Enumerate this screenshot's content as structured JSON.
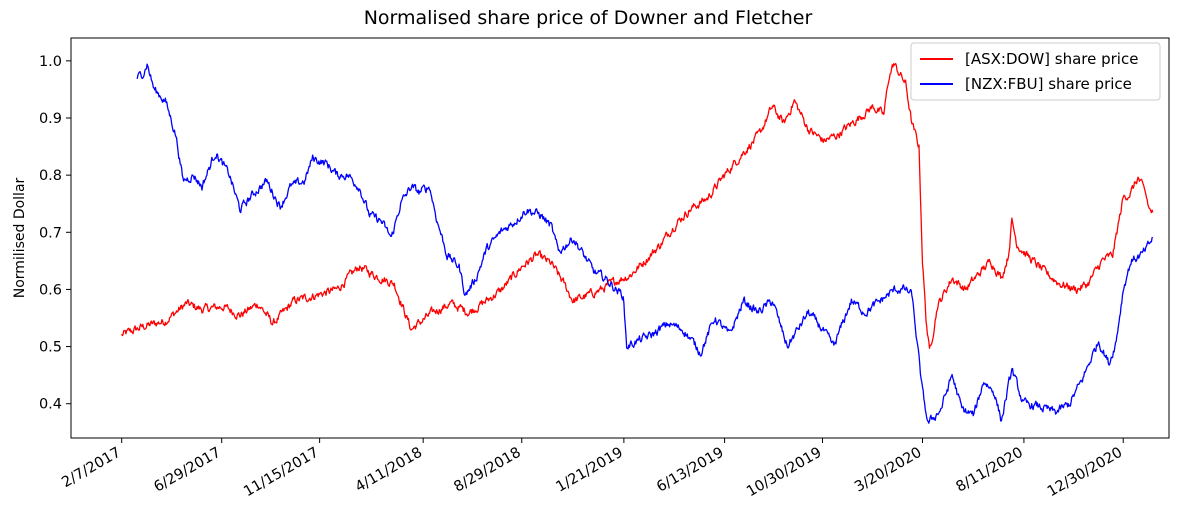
{
  "chart_data": {
    "type": "line",
    "title": "Normalised share price of Downer and Fletcher",
    "xlabel": "",
    "ylabel": "Normilised Dollar",
    "x_ticks": [
      "2/7/2017",
      "6/29/2017",
      "11/15/2017",
      "4/11/2018",
      "8/29/2018",
      "1/21/2019",
      "6/13/2019",
      "10/30/2019",
      "3/20/2020",
      "8/11/2020",
      "12/30/2020"
    ],
    "y_ticks": [
      "0.4",
      "0.5",
      "0.6",
      "0.7",
      "0.8",
      "0.9",
      "1.0"
    ],
    "ylim": [
      0.34,
      1.04
    ],
    "xlim": [
      "2016-11-27",
      "2021-03-05"
    ],
    "grid": false,
    "legend_position": "top-right",
    "series": [
      {
        "name": "[ASX:DOW] share price",
        "color": "#ff0000",
        "points": [
          [
            "2017-02-07",
            0.52
          ],
          [
            "2017-03-10",
            0.535
          ],
          [
            "2017-04-10",
            0.545
          ],
          [
            "2017-05-10",
            0.575
          ],
          [
            "2017-06-01",
            0.565
          ],
          [
            "2017-07-01",
            0.57
          ],
          [
            "2017-07-25",
            0.555
          ],
          [
            "2017-08-20",
            0.575
          ],
          [
            "2017-09-10",
            0.54
          ],
          [
            "2017-10-10",
            0.58
          ],
          [
            "2017-11-10",
            0.59
          ],
          [
            "2017-12-10",
            0.6
          ],
          [
            "2018-01-10",
            0.64
          ],
          [
            "2018-02-01",
            0.625
          ],
          [
            "2018-03-01",
            0.61
          ],
          [
            "2018-03-25",
            0.53
          ],
          [
            "2018-04-25",
            0.56
          ],
          [
            "2018-05-20",
            0.575
          ],
          [
            "2018-06-15",
            0.56
          ],
          [
            "2018-07-10",
            0.58
          ],
          [
            "2018-08-01",
            0.6
          ],
          [
            "2018-08-29",
            0.64
          ],
          [
            "2018-09-20",
            0.66
          ],
          [
            "2018-10-10",
            0.645
          ],
          [
            "2018-10-28",
            0.61
          ],
          [
            "2018-11-10",
            0.58
          ],
          [
            "2018-12-01",
            0.59
          ],
          [
            "2018-12-20",
            0.6
          ],
          [
            "2019-01-10",
            0.615
          ],
          [
            "2019-01-30",
            0.625
          ],
          [
            "2019-02-20",
            0.65
          ],
          [
            "2019-03-15",
            0.68
          ],
          [
            "2019-04-01",
            0.71
          ],
          [
            "2019-04-25",
            0.74
          ],
          [
            "2019-05-20",
            0.76
          ],
          [
            "2019-06-13",
            0.8
          ],
          [
            "2019-07-10",
            0.84
          ],
          [
            "2019-08-01",
            0.87
          ],
          [
            "2019-08-20",
            0.92
          ],
          [
            "2019-09-05",
            0.89
          ],
          [
            "2019-09-20",
            0.93
          ],
          [
            "2019-10-10",
            0.88
          ],
          [
            "2019-11-01",
            0.86
          ],
          [
            "2019-11-20",
            0.87
          ],
          [
            "2019-12-10",
            0.89
          ],
          [
            "2020-01-10",
            0.92
          ],
          [
            "2020-01-25",
            0.905
          ],
          [
            "2020-02-01",
            0.97
          ],
          [
            "2020-02-08",
            0.995
          ],
          [
            "2020-02-25",
            0.96
          ],
          [
            "2020-03-05",
            0.89
          ],
          [
            "2020-03-15",
            0.85
          ],
          [
            "2020-03-20",
            0.65
          ],
          [
            "2020-03-25",
            0.55
          ],
          [
            "2020-03-30",
            0.49
          ],
          [
            "2020-04-10",
            0.57
          ],
          [
            "2020-05-01",
            0.62
          ],
          [
            "2020-05-20",
            0.6
          ],
          [
            "2020-06-10",
            0.63
          ],
          [
            "2020-06-25",
            0.65
          ],
          [
            "2020-07-10",
            0.62
          ],
          [
            "2020-07-20",
            0.66
          ],
          [
            "2020-07-25",
            0.72
          ],
          [
            "2020-08-01",
            0.68
          ],
          [
            "2020-08-15",
            0.66
          ],
          [
            "2020-09-10",
            0.63
          ],
          [
            "2020-10-01",
            0.61
          ],
          [
            "2020-10-25",
            0.6
          ],
          [
            "2020-11-10",
            0.61
          ],
          [
            "2020-11-30",
            0.65
          ],
          [
            "2020-12-15",
            0.66
          ],
          [
            "2020-12-30",
            0.76
          ],
          [
            "2021-01-10",
            0.77
          ],
          [
            "2021-01-20",
            0.795
          ],
          [
            "2021-01-30",
            0.77
          ],
          [
            "2021-02-05",
            0.74
          ],
          [
            "2021-02-10",
            0.735
          ]
        ]
      },
      {
        "name": "[NZX:FBU] share price",
        "color": "#0000ff",
        "points": [
          [
            "2017-03-01",
            0.97
          ],
          [
            "2017-03-10",
            0.98
          ],
          [
            "2017-03-15",
            0.995
          ],
          [
            "2017-03-25",
            0.95
          ],
          [
            "2017-04-10",
            0.93
          ],
          [
            "2017-04-25",
            0.87
          ],
          [
            "2017-05-05",
            0.79
          ],
          [
            "2017-05-20",
            0.8
          ],
          [
            "2017-06-01",
            0.78
          ],
          [
            "2017-06-20",
            0.84
          ],
          [
            "2017-07-10",
            0.8
          ],
          [
            "2017-07-25",
            0.74
          ],
          [
            "2017-08-15",
            0.77
          ],
          [
            "2017-09-01",
            0.79
          ],
          [
            "2017-09-20",
            0.745
          ],
          [
            "2017-10-05",
            0.78
          ],
          [
            "2017-10-25",
            0.79
          ],
          [
            "2017-11-05",
            0.83
          ],
          [
            "2017-11-25",
            0.82
          ],
          [
            "2017-12-10",
            0.8
          ],
          [
            "2017-12-25",
            0.8
          ],
          [
            "2018-01-10",
            0.78
          ],
          [
            "2018-01-25",
            0.73
          ],
          [
            "2018-02-10",
            0.72
          ],
          [
            "2018-02-25",
            0.69
          ],
          [
            "2018-03-10",
            0.75
          ],
          [
            "2018-03-25",
            0.78
          ],
          [
            "2018-04-05",
            0.77
          ],
          [
            "2018-04-20",
            0.78
          ],
          [
            "2018-05-01",
            0.72
          ],
          [
            "2018-05-15",
            0.66
          ],
          [
            "2018-06-01",
            0.64
          ],
          [
            "2018-06-10",
            0.59
          ],
          [
            "2018-06-25",
            0.62
          ],
          [
            "2018-07-10",
            0.67
          ],
          [
            "2018-07-30",
            0.7
          ],
          [
            "2018-08-20",
            0.72
          ],
          [
            "2018-09-05",
            0.74
          ],
          [
            "2018-09-25",
            0.73
          ],
          [
            "2018-10-10",
            0.71
          ],
          [
            "2018-10-20",
            0.665
          ],
          [
            "2018-11-10",
            0.69
          ],
          [
            "2018-11-25",
            0.66
          ],
          [
            "2018-12-10",
            0.63
          ],
          [
            "2018-12-25",
            0.62
          ],
          [
            "2019-01-10",
            0.6
          ],
          [
            "2019-01-20",
            0.59
          ],
          [
            "2019-01-25",
            0.5
          ],
          [
            "2019-02-10",
            0.51
          ],
          [
            "2019-03-01",
            0.52
          ],
          [
            "2019-03-25",
            0.54
          ],
          [
            "2019-04-15",
            0.53
          ],
          [
            "2019-05-10",
            0.49
          ],
          [
            "2019-05-30",
            0.55
          ],
          [
            "2019-06-20",
            0.52
          ],
          [
            "2019-07-10",
            0.58
          ],
          [
            "2019-07-30",
            0.56
          ],
          [
            "2019-08-20",
            0.58
          ],
          [
            "2019-09-10",
            0.5
          ],
          [
            "2019-09-25",
            0.53
          ],
          [
            "2019-10-10",
            0.56
          ],
          [
            "2019-10-30",
            0.53
          ],
          [
            "2019-11-15",
            0.5
          ],
          [
            "2019-12-10",
            0.58
          ],
          [
            "2019-12-30",
            0.56
          ],
          [
            "2020-01-20",
            0.58
          ],
          [
            "2020-02-10",
            0.6
          ],
          [
            "2020-02-25",
            0.6
          ],
          [
            "2020-03-05",
            0.59
          ],
          [
            "2020-03-12",
            0.51
          ],
          [
            "2020-03-20",
            0.42
          ],
          [
            "2020-03-28",
            0.365
          ],
          [
            "2020-04-15",
            0.39
          ],
          [
            "2020-05-01",
            0.45
          ],
          [
            "2020-05-15",
            0.39
          ],
          [
            "2020-06-01",
            0.38
          ],
          [
            "2020-06-15",
            0.44
          ],
          [
            "2020-06-30",
            0.42
          ],
          [
            "2020-07-10",
            0.37
          ],
          [
            "2020-07-25",
            0.46
          ],
          [
            "2020-08-10",
            0.4
          ],
          [
            "2020-09-01",
            0.395
          ],
          [
            "2020-09-25",
            0.385
          ],
          [
            "2020-10-15",
            0.4
          ],
          [
            "2020-11-01",
            0.44
          ],
          [
            "2020-11-25",
            0.51
          ],
          [
            "2020-12-10",
            0.47
          ],
          [
            "2020-12-20",
            0.51
          ],
          [
            "2020-12-30",
            0.6
          ],
          [
            "2021-01-10",
            0.65
          ],
          [
            "2021-01-25",
            0.66
          ],
          [
            "2021-02-01",
            0.67
          ],
          [
            "2021-02-10",
            0.69
          ]
        ]
      }
    ]
  }
}
